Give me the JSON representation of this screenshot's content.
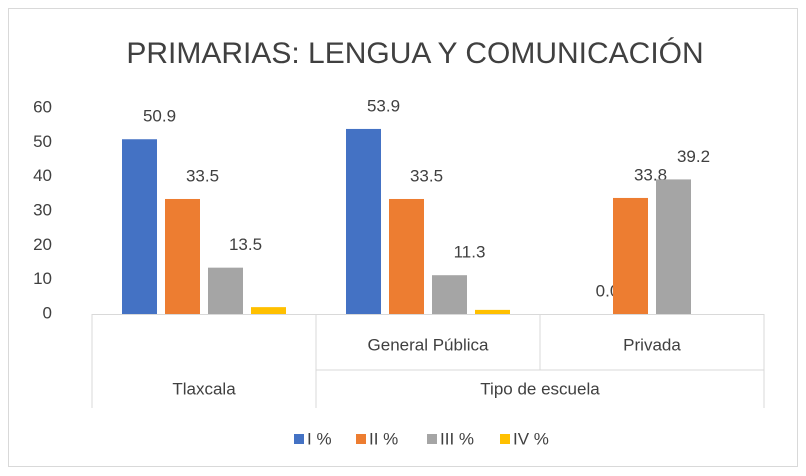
{
  "chart_data": {
    "type": "bar",
    "title": "PRIMARIAS: LENGUA Y COMUNICACIÓN",
    "categories": [
      null,
      "General Pública",
      "Privada"
    ],
    "category_groups": [
      {
        "label": "Tlaxcala",
        "span": 1
      },
      {
        "label": "Tipo de escuela",
        "span": 2
      }
    ],
    "series": [
      {
        "name": "I %",
        "color": "#4472c4",
        "values": [
          50.9,
          53.9,
          0
        ],
        "value_labels": [
          "50.9",
          "53.9",
          "0.0"
        ],
        "data_labels": true
      },
      {
        "name": "II %",
        "color": "#ed7d31",
        "values": [
          33.5,
          33.5,
          33.8
        ],
        "data_labels": true
      },
      {
        "name": "III %",
        "color": "#a5a5a5",
        "values": [
          13.5,
          11.3,
          39.2
        ],
        "data_labels": true
      },
      {
        "name": "IV %",
        "color": "#ffc000",
        "values": [
          2.0,
          1.2,
          0
        ],
        "data_labels": false
      }
    ],
    "ylim": [
      0,
      60
    ],
    "yticks": [
      0,
      10,
      20,
      30,
      40,
      50,
      60
    ],
    "grid": false,
    "legend": "bottom"
  }
}
